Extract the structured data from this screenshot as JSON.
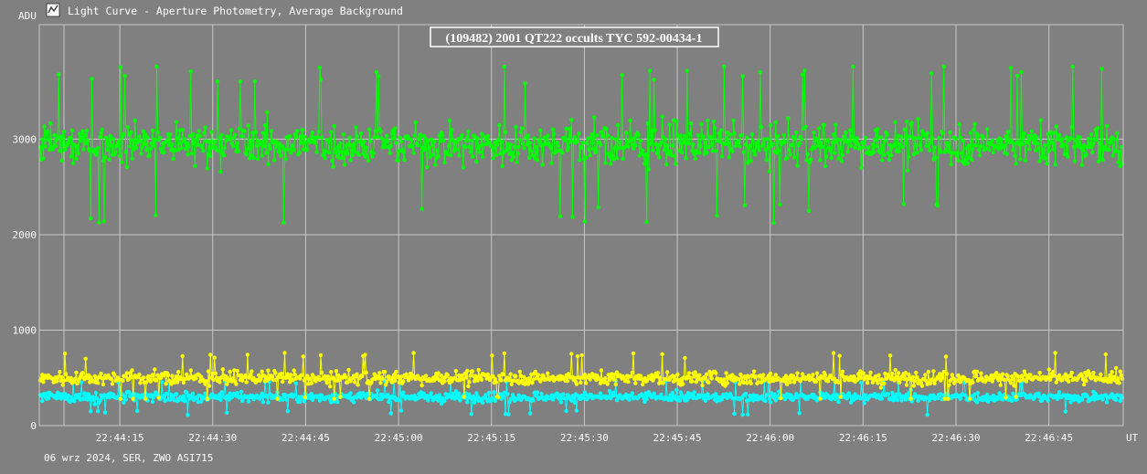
{
  "window": {
    "title": "Light Curve - Aperture Photometry, Average Background",
    "icon": "light-curve-app-icon"
  },
  "footer": {
    "caption": "06 wrz 2024, SER, ZWO ASI715"
  },
  "colors": {
    "background": "#808080",
    "grid": "#c8c8c8",
    "text": "#ffffff",
    "target_star": "#00ff00",
    "comparison_1": "#ffff00",
    "comparison_2": "#00ffff"
  },
  "chart_data": {
    "type": "line",
    "title": "(109482) 2001 QT222 occults TYC 592-00434-1",
    "ylabel": "ADU",
    "xlabel": "UT",
    "ylim": [
      0,
      4200
    ],
    "xlim": [
      "22:44:02",
      "22:46:57"
    ],
    "y_ticks": [
      "0",
      "1000",
      "2000",
      "3000"
    ],
    "x_ticks": [
      "22:44:15",
      "22:44:30",
      "22:44:45",
      "22:45:00",
      "22:45:15",
      "22:45:30",
      "22:45:45",
      "22:46:00",
      "22:46:15",
      "22:46:30",
      "22:46:45"
    ],
    "grid": true,
    "legend": "none",
    "series": [
      {
        "mean": 2950,
        "min": 2080,
        "max": 3760
      },
      {
        "mean": 500,
        "min": 280,
        "max": 810
      },
      {
        "mean": 300,
        "min": 90,
        "max": 470
      }
    ]
  }
}
